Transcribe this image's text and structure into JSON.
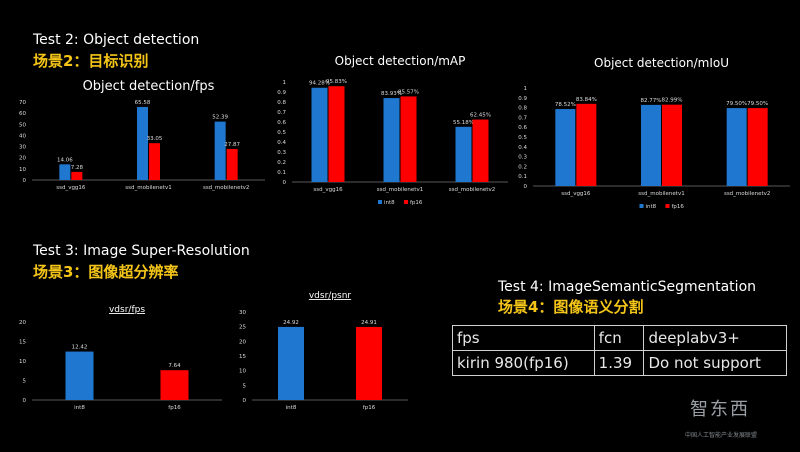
{
  "sections": {
    "test2_title": "Test 2: Object detection",
    "test2_cn": "场景2：目标识别",
    "test3_title": "Test 3: Image Super-Resolution",
    "test3_cn": "场景3：图像超分辨率",
    "test4_title": "Test 4: ImageSemanticSegmentation",
    "test4_cn": "场景4：图像语义分割"
  },
  "colors": {
    "int8": "#1f77d0",
    "fp16": "#ff0000",
    "background": "#000000",
    "accent_cn": "#f5c518"
  },
  "table": {
    "rows": [
      [
        "fps",
        "fcn",
        "deeplabv3+"
      ],
      [
        "kirin 980(fp16)",
        "1.39",
        "Do not support"
      ]
    ]
  },
  "watermark": {
    "logo_text": "智东西",
    "sub_text": "中国人工智能产业发展联盟"
  },
  "chart_data": [
    {
      "type": "bar",
      "title": "Object detection/fps",
      "categories": [
        "ssd_vgg16",
        "ssd_mobilenetv1",
        "ssd_mobilenetv2"
      ],
      "series": [
        {
          "name": "int8",
          "values": [
            14.06,
            65.58,
            52.39
          ],
          "labels": [
            "14.06",
            "65.58",
            "52.39"
          ]
        },
        {
          "name": "fp16",
          "values": [
            7.28,
            33.05,
            27.87
          ],
          "labels": [
            "7.28",
            "33.05",
            "27.87"
          ]
        }
      ],
      "yticks": [
        "0",
        "10",
        "20",
        "30",
        "40",
        "50",
        "60",
        "70"
      ],
      "ylim": [
        0,
        70
      ],
      "legend": ""
    },
    {
      "type": "bar",
      "title": "Object detection/mAP",
      "categories": [
        "ssd_vgg16",
        "ssd_mobilenetv1",
        "ssd_mobilenetv2"
      ],
      "series": [
        {
          "name": "int8",
          "values": [
            0.9428,
            0.8393,
            0.5518
          ],
          "labels": [
            "94.28%",
            "83.93%",
            "55.18%"
          ]
        },
        {
          "name": "fp16",
          "values": [
            0.9583,
            0.8557,
            0.6245
          ],
          "labels": [
            "95.83%",
            "85.57%",
            "62.45%"
          ]
        }
      ],
      "yticks": [
        "0",
        "0.1",
        "0.2",
        "0.3",
        "0.4",
        "0.5",
        "0.6",
        "0.7",
        "0.8",
        "0.9",
        "1"
      ],
      "ylim": [
        0,
        1
      ],
      "legend": "bottom",
      "legend_labels": [
        "int8",
        "fp16"
      ]
    },
    {
      "type": "bar",
      "title": "Object detection/mIoU",
      "categories": [
        "ssd_vgg16",
        "ssd_mobilenetv1",
        "ssd_mobilenetv2"
      ],
      "series": [
        {
          "name": "int8",
          "values": [
            0.7852,
            0.8277,
            0.795
          ],
          "labels": [
            "78.52%",
            "82.77%",
            "79.50%"
          ]
        },
        {
          "name": "fp16",
          "values": [
            0.8384,
            0.8299,
            0.795
          ],
          "labels": [
            "83.84%",
            "82.99%",
            "79.50%"
          ]
        }
      ],
      "yticks": [
        "0",
        "0.1",
        "0.2",
        "0.3",
        "0.4",
        "0.5",
        "0.6",
        "0.7",
        "0.8",
        "0.9",
        "1"
      ],
      "ylim": [
        0,
        1
      ],
      "legend": "bottom",
      "legend_labels": [
        "int8",
        "fp16"
      ]
    },
    {
      "type": "bar",
      "title": "vdsr/fps",
      "categories": [
        "int8",
        "fp16"
      ],
      "series": [
        {
          "name": "vdsr",
          "values": [
            12.42,
            7.64
          ],
          "labels": [
            "12.42",
            "7.64"
          ],
          "colors": [
            "#1f77d0",
            "#ff0000"
          ]
        }
      ],
      "yticks": [
        "0",
        "5",
        "10",
        "15",
        "20"
      ],
      "ylim": [
        0,
        20
      ],
      "legend": ""
    },
    {
      "type": "bar",
      "title": "vdsr/psnr",
      "categories": [
        "int8",
        "fp16"
      ],
      "series": [
        {
          "name": "vdsr",
          "values": [
            24.92,
            24.91
          ],
          "labels": [
            "24.92",
            "24.91"
          ],
          "colors": [
            "#1f77d0",
            "#ff0000"
          ]
        }
      ],
      "yticks": [
        "0",
        "5",
        "10",
        "15",
        "20",
        "25",
        "30"
      ],
      "ylim": [
        0,
        30
      ],
      "legend": ""
    }
  ]
}
